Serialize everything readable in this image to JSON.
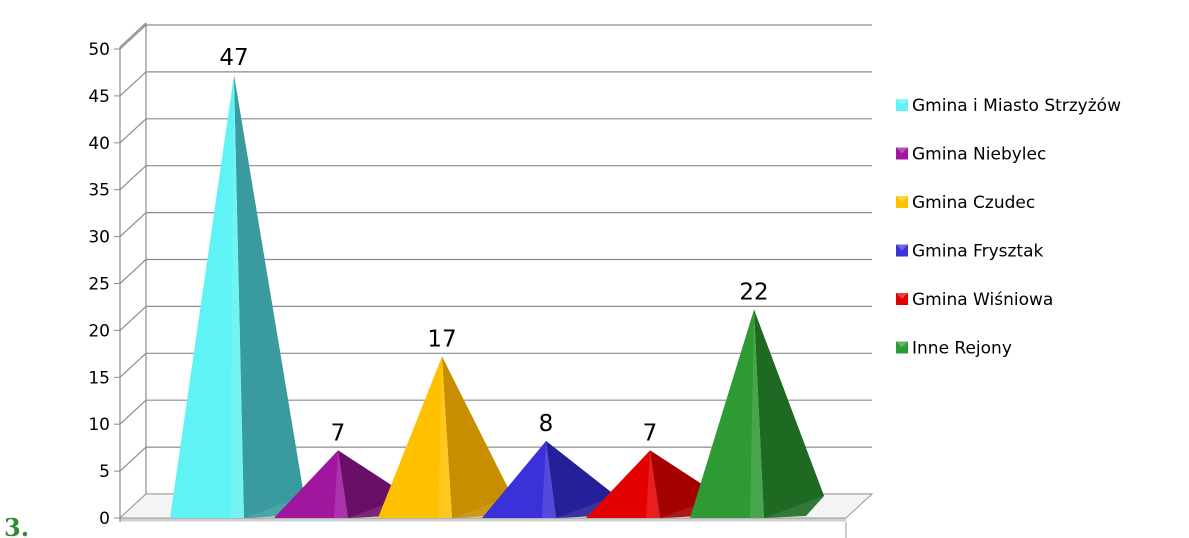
{
  "chart_data": {
    "type": "bar",
    "bar_shape": "3d-pyramid",
    "categories": [
      "Gmina i Miasto Strzyżów",
      "Gmina Niebylec",
      "Gmina Czudec",
      "Gmina Frysztak",
      "Gmina Wiśniowa",
      "Inne Rejony"
    ],
    "values": [
      47,
      7,
      17,
      8,
      7,
      22
    ],
    "value_labels": [
      "47",
      "7",
      "17",
      "8",
      "7",
      "22"
    ],
    "colors": [
      "#5ff3f6",
      "#a0179e",
      "#ffc000",
      "#3a32d8",
      "#e50000",
      "#2e9a33"
    ],
    "side_colors": [
      "#3a9aa0",
      "#6a0f68",
      "#c78f00",
      "#23209a",
      "#a40000",
      "#1e6a22"
    ],
    "ylim": [
      0,
      50
    ],
    "yticks": [
      "0",
      "5",
      "10",
      "15",
      "20",
      "25",
      "30",
      "35",
      "40",
      "45",
      "50"
    ],
    "grid": true,
    "legend_position": "right",
    "title": "",
    "xlabel": "",
    "ylabel": ""
  },
  "page_fragment": "3."
}
